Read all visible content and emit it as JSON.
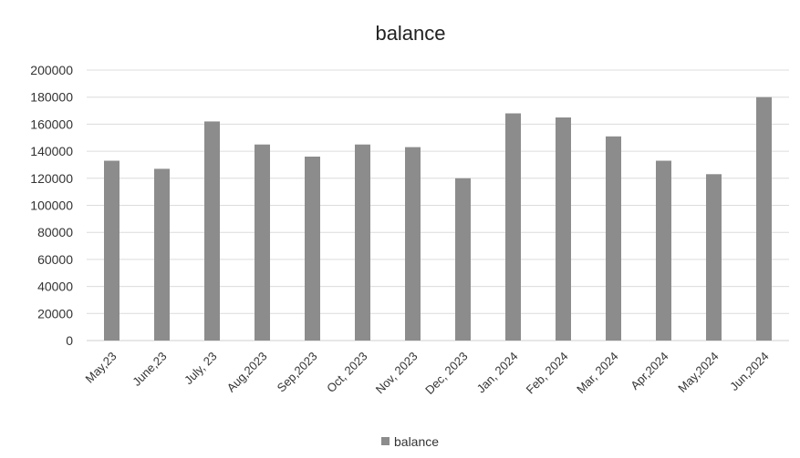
{
  "chart_data": {
    "type": "bar",
    "title": "balance",
    "xlabel": "",
    "ylabel": "",
    "categories": [
      "May,23",
      "June,23",
      "July, 23",
      "Aug,2023",
      "Sep,2023",
      "Oct, 2023",
      "Nov, 2023",
      "Dec, 2023",
      "Jan, 2024",
      "Feb, 2024",
      "Mar, 2024",
      "Apr,2024",
      "May,2024",
      "Jun,2024"
    ],
    "series": [
      {
        "name": "balance",
        "values": [
          133000,
          127000,
          162000,
          145000,
          136000,
          145000,
          143000,
          120000,
          168000,
          165000,
          151000,
          133000,
          123000,
          180000
        ]
      }
    ],
    "ylim": [
      0,
      200000
    ],
    "yticks": [
      "0",
      "20000",
      "40000",
      "60000",
      "80000",
      "100000",
      "120000",
      "140000",
      "160000",
      "180000",
      "200000"
    ],
    "grid": true,
    "legend": "bottom",
    "colors": {
      "bar": "#8c8c8c",
      "grid": "#dcdcdc"
    }
  }
}
